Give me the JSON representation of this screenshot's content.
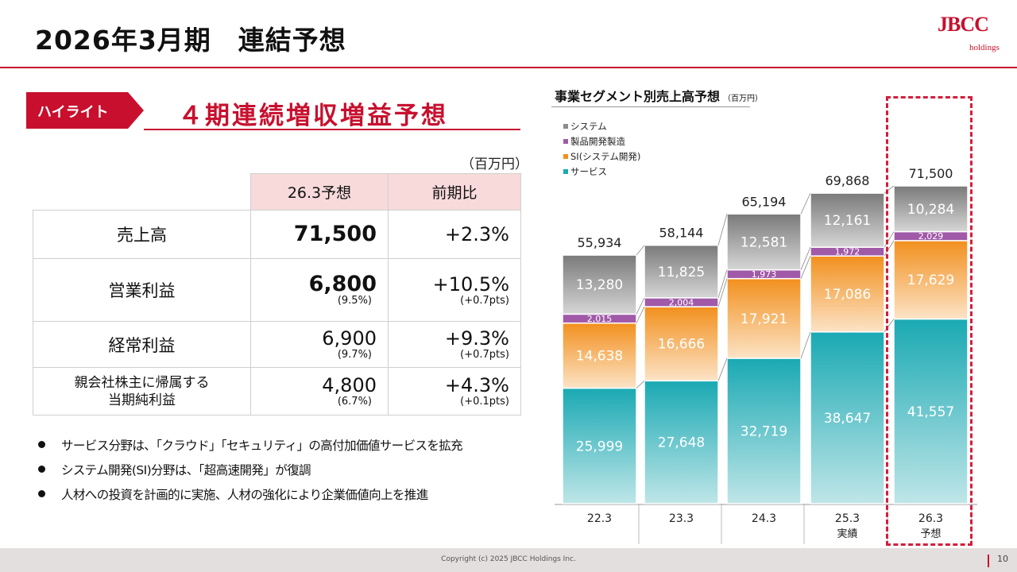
{
  "page": {
    "title": "2026年3月期　連結予想"
  },
  "logo": {
    "main": "JBCC",
    "sub": "holdings"
  },
  "highlight": {
    "badge": "ハイライト",
    "headline": "４期連続増収増益予想"
  },
  "table": {
    "unit": "（百万円）",
    "headers": [
      "26.3予想",
      "前期比"
    ],
    "rows": [
      {
        "label": "売上高",
        "value": "71,500",
        "ratio": "",
        "change": "+2.3%",
        "change_sub": ""
      },
      {
        "label": "営業利益",
        "value": "6,800",
        "ratio": "(9.5%)",
        "change": "+10.5%",
        "change_sub": "(+0.7pts)"
      },
      {
        "label": "経常利益",
        "value": "6,900",
        "ratio": "(9.7%)",
        "change": "+9.3%",
        "change_sub": "(+0.7pts)"
      },
      {
        "label_line1": "親会社株主に帰属する",
        "label_line2": "当期純利益",
        "value": "4,800",
        "ratio": "(6.7%)",
        "change": "+4.3%",
        "change_sub": "(+0.1pts)"
      }
    ]
  },
  "bullets": [
    "サービス分野は、「クラウド」「セキュリティ」の高付加価値サービスを拡充",
    "システム開発(SI)分野は、「超高速開発」が復調",
    "人材への投資を計画的に実施、人材の強化により企業価値向上を推進"
  ],
  "chart_data": {
    "type": "bar",
    "stacked": true,
    "title": "事業セグメント別売上高予想",
    "title_unit": "（百万円）",
    "categories": [
      "22.3",
      "23.3",
      "24.3",
      "25.3",
      "26.3"
    ],
    "category_sublabels": [
      "",
      "",
      "",
      "実績",
      "予想"
    ],
    "totals": [
      "55,934",
      "58,144",
      "65,194",
      "69,868",
      "71,500"
    ],
    "series": [
      {
        "name": "サービス",
        "color": "#1aa9b3",
        "values": [
          25999,
          27648,
          32719,
          38647,
          41557
        ]
      },
      {
        "name": "SI(システム開発)",
        "color": "#f2901e",
        "values": [
          14638,
          16666,
          17921,
          17086,
          17629
        ]
      },
      {
        "name": "製品開発製造",
        "color": "#a05aa8",
        "values": [
          2015,
          2004,
          1973,
          1972,
          2029
        ]
      },
      {
        "name": "システム",
        "color": "#8c8c8c",
        "values": [
          13280,
          11825,
          12581,
          12161,
          10284
        ]
      }
    ],
    "legend_order": [
      "システム",
      "製品開発製造",
      "SI(システム開発)",
      "サービス"
    ],
    "legend_position": "top-left"
  },
  "footer": {
    "copyright": "Copyright (c) 2025 JBCC Holdings Inc.",
    "page": "10"
  },
  "colors": {
    "accent": "#c8102e",
    "header_bg": "#f8dada",
    "forecast_border": "#d21f3c"
  }
}
